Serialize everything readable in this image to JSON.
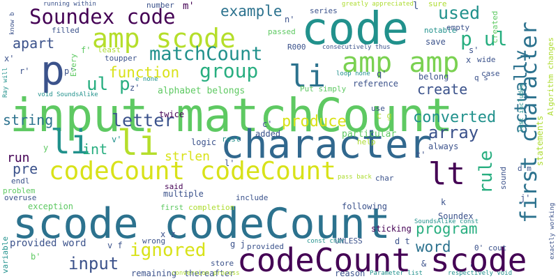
{
  "palette": {
    "dark_purple": "#440154",
    "indigo": "#3b528b",
    "blue": "#2c728e",
    "teal": "#21918c",
    "sea_green": "#28ae80",
    "green": "#5ec962",
    "lime": "#addc30",
    "yellow": "#d8e219"
  },
  "words": [
    {
      "text": "input matchCount",
      "color": "#5ec962"
    },
    {
      "text": "scode codeCount",
      "color": "#2c728e"
    },
    {
      "text": "codeCount scode",
      "color": "#440154"
    },
    {
      "text": "character",
      "color": "#31688e"
    },
    {
      "text": "code",
      "color": "#21918c"
    },
    {
      "text": "codeCount codeCount",
      "color": "#d8e219"
    },
    {
      "text": "amp scode",
      "color": "#b5de2b"
    },
    {
      "text": "amp amp",
      "color": "#7ad151"
    },
    {
      "text": "Soundex code",
      "color": "#440154"
    },
    {
      "text": "first character",
      "color": "#2c728e"
    },
    {
      "text": "matchCount",
      "color": "#21918c"
    },
    {
      "text": "li",
      "color": "#2c728e"
    },
    {
      "text": "li",
      "color": "#b5de2b"
    },
    {
      "text": "li",
      "color": "#21918c"
    },
    {
      "text": "lt",
      "color": "#440154"
    },
    {
      "text": "p",
      "color": "#3b528b"
    },
    {
      "text": "p ul",
      "color": "#28ae80"
    },
    {
      "text": "ul p",
      "color": "#28ae80"
    },
    {
      "text": "group",
      "color": "#28ae80"
    },
    {
      "text": "actually",
      "color": "#2c728e"
    },
    {
      "text": "used",
      "color": "#21918c"
    },
    {
      "text": "example",
      "color": "#2c728e"
    },
    {
      "text": "apart",
      "color": "#3b528b"
    },
    {
      "text": "function",
      "color": "#d8e219"
    },
    {
      "text": "create",
      "color": "#3b528b"
    },
    {
      "text": "letter",
      "color": "#3b528b"
    },
    {
      "text": "produce",
      "color": "#d8e219"
    },
    {
      "text": "converted",
      "color": "#21918c"
    },
    {
      "text": "array",
      "color": "#3b528b"
    },
    {
      "text": "string",
      "color": "#2c728e"
    },
    {
      "text": "run",
      "color": "#440154"
    },
    {
      "text": "int",
      "color": "#28ae80"
    },
    {
      "text": "strlen",
      "color": "#d8e219"
    },
    {
      "text": "rule",
      "color": "#28ae80"
    },
    {
      "text": "pre",
      "color": "#3b528b"
    },
    {
      "text": "program",
      "color": "#28ae80"
    },
    {
      "text": "ignored",
      "color": "#d8e219"
    },
    {
      "text": "input",
      "color": "#3b528b"
    },
    {
      "text": "word",
      "color": "#2c728e"
    },
    {
      "text": "provided word",
      "color": "#3b528b"
    },
    {
      "text": "alphabet belongs",
      "color": "#5ec962"
    },
    {
      "text": "Put simply",
      "color": "#5ec962"
    },
    {
      "text": "reference",
      "color": "#3b528b"
    },
    {
      "text": "twice",
      "color": "#440154"
    },
    {
      "text": "logic",
      "color": "#3b528b"
    },
    {
      "text": "rest",
      "color": "#21918c"
    },
    {
      "text": "added",
      "color": "#3b528b"
    },
    {
      "text": "particular",
      "color": "#5ec962"
    },
    {
      "text": "help",
      "color": "#addc30"
    },
    {
      "text": "always",
      "color": "#3b528b"
    },
    {
      "text": "following",
      "color": "#3b528b"
    },
    {
      "text": "Soundex",
      "color": "#3b528b"
    },
    {
      "text": "SoundsAlike const",
      "color": "#21918c"
    },
    {
      "text": "sticking",
      "color": "#440154"
    },
    {
      "text": "multiple",
      "color": "#3b528b"
    },
    {
      "text": "said",
      "color": "#440154"
    },
    {
      "text": "include",
      "color": "#3b528b"
    },
    {
      "text": "completion",
      "color": "#addc30"
    },
    {
      "text": "first",
      "color": "#5ec962"
    },
    {
      "text": "exception",
      "color": "#5ec962"
    },
    {
      "text": "problem",
      "color": "#5ec962"
    },
    {
      "text": "overuse",
      "color": "#3b528b"
    },
    {
      "text": "endl",
      "color": "#3b528b"
    },
    {
      "text": "variable",
      "color": "#21918c"
    },
    {
      "text": "wrong",
      "color": "#3b528b"
    },
    {
      "text": "remaining",
      "color": "#3b528b"
    },
    {
      "text": "thereafter",
      "color": "#3b528b"
    },
    {
      "text": "store",
      "color": "#3b528b"
    },
    {
      "text": "provided",
      "color": "#3b528b"
    },
    {
      "text": "UNLESS",
      "color": "#3b528b"
    },
    {
      "text": "conversion process",
      "color": "#addc30"
    },
    {
      "text": "reason",
      "color": "#3b528b"
    },
    {
      "text": "const char",
      "color": "#21918c"
    },
    {
      "text": "respectively void",
      "color": "#21918c"
    },
    {
      "text": "Parameter list",
      "color": "#21918c"
    },
    {
      "text": "pass back",
      "color": "#addc30"
    },
    {
      "text": "char",
      "color": "#3b528b"
    },
    {
      "text": "sound",
      "color": "#3b528b"
    },
    {
      "text": "exactly working",
      "color": "#3b528b"
    },
    {
      "text": "0' cout",
      "color": "#3b528b"
    },
    {
      "text": "statements",
      "color": "#addc30"
    },
    {
      "text": "Algorithm changes",
      "color": "#addc30"
    },
    {
      "text": "list includes",
      "color": "#21918c"
    },
    {
      "text": "created",
      "color": "#5ec962"
    },
    {
      "text": "belong",
      "color": "#3b528b"
    },
    {
      "text": "case",
      "color": "#3b528b"
    },
    {
      "text": "wide",
      "color": "#3b528b"
    },
    {
      "text": "save",
      "color": "#3b528b"
    },
    {
      "text": "notable",
      "color": "#21918c"
    },
    {
      "text": "empty",
      "color": "#3b528b"
    },
    {
      "text": "sure",
      "color": "#addc30"
    },
    {
      "text": "series",
      "color": "#3b528b"
    },
    {
      "text": "greatly appreciated",
      "color": "#addc30"
    },
    {
      "text": "consecutively thus",
      "color": "#3b528b"
    },
    {
      "text": "R000",
      "color": "#3b528b"
    },
    {
      "text": "passed",
      "color": "#5ec962"
    },
    {
      "text": "loop none",
      "color": "#21918c"
    },
    {
      "text": "number",
      "color": "#3b528b"
    },
    {
      "text": "running within",
      "color": "#3b528b"
    },
    {
      "text": "know b",
      "color": "#3b528b"
    },
    {
      "text": "filled",
      "color": "#3b528b"
    },
    {
      "text": "Every",
      "color": "#5ec962"
    },
    {
      "text": "least",
      "color": "#addc30"
    },
    {
      "text": "toupper",
      "color": "#3b528b"
    },
    {
      "text": "e none",
      "color": "#21918c"
    },
    {
      "text": "Ray will",
      "color": "#21918c"
    },
    {
      "text": "void SoundsAlike",
      "color": "#21918c"
    },
    {
      "text": "use",
      "color": "#3b528b"
    },
    {
      "text": "m'",
      "color": "#440154"
    },
    {
      "text": "n'",
      "color": "#3b528b"
    },
    {
      "text": "l",
      "color": "#3b528b"
    },
    {
      "text": "s'",
      "color": "#3b528b"
    },
    {
      "text": "x'",
      "color": "#3b528b"
    },
    {
      "text": "r'",
      "color": "#3b528b"
    },
    {
      "text": "f'",
      "color": "#5ec962"
    },
    {
      "text": "p'",
      "color": "#3b528b"
    },
    {
      "text": "z'",
      "color": "#3b528b"
    },
    {
      "text": "q'",
      "color": "#3b528b"
    },
    {
      "text": "q s",
      "color": "#3b528b"
    },
    {
      "text": "x",
      "color": "#3b528b"
    },
    {
      "text": "c'",
      "color": "#3b528b"
    },
    {
      "text": "c g",
      "color": "#addc30"
    },
    {
      "text": "v'",
      "color": "#21918c"
    },
    {
      "text": "t'",
      "color": "#3b528b"
    },
    {
      "text": "l'",
      "color": "#3b528b"
    },
    {
      "text": "j'",
      "color": "#3b528b"
    },
    {
      "text": "d m",
      "color": "#3b528b"
    },
    {
      "text": "d t",
      "color": "#3b528b"
    },
    {
      "text": "x z",
      "color": "#3b528b"
    },
    {
      "text": "v f",
      "color": "#3b528b"
    },
    {
      "text": "g j",
      "color": "#3b528b"
    },
    {
      "text": "b'",
      "color": "#5ec962"
    },
    {
      "text": "y",
      "color": "#5ec962"
    },
    {
      "text": "k",
      "color": "#3b528b"
    },
    {
      "text": "&",
      "color": "#3b528b"
    },
    {
      "text": "'",
      "color": "#3b528b"
    }
  ]
}
